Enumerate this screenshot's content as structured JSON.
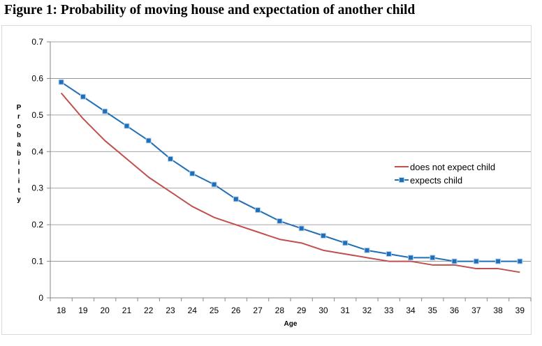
{
  "figure": {
    "title": "Figure 1: Probability of moving house and expectation of another child"
  },
  "chart_data": {
    "type": "line",
    "title": "Figure 1: Probability of moving house and expectation of another child",
    "xlabel": "Age",
    "ylabel": "Probability",
    "categories": [
      18,
      19,
      20,
      21,
      22,
      23,
      24,
      25,
      26,
      27,
      28,
      29,
      30,
      31,
      32,
      33,
      34,
      35,
      36,
      37,
      38,
      39
    ],
    "ylim": [
      0,
      0.7
    ],
    "yticks": [
      0,
      0.1,
      0.2,
      0.3,
      0.4,
      0.5,
      0.6,
      0.7
    ],
    "grid": "horizontal",
    "legend_position": "right",
    "series": [
      {
        "name": "does not expect child",
        "color": "#c0504d",
        "marker": "none",
        "values": [
          0.56,
          0.49,
          0.43,
          0.38,
          0.33,
          0.29,
          0.25,
          0.22,
          0.2,
          0.18,
          0.16,
          0.15,
          0.13,
          0.12,
          0.11,
          0.1,
          0.1,
          0.09,
          0.09,
          0.08,
          0.08,
          0.07
        ]
      },
      {
        "name": "expects child",
        "color": "#1f6fb8",
        "marker": "square",
        "values": [
          0.59,
          0.55,
          0.51,
          0.47,
          0.43,
          0.38,
          0.34,
          0.31,
          0.27,
          0.24,
          0.21,
          0.19,
          0.17,
          0.15,
          0.13,
          0.12,
          0.11,
          0.11,
          0.1,
          0.1,
          0.1,
          0.1
        ]
      }
    ]
  }
}
